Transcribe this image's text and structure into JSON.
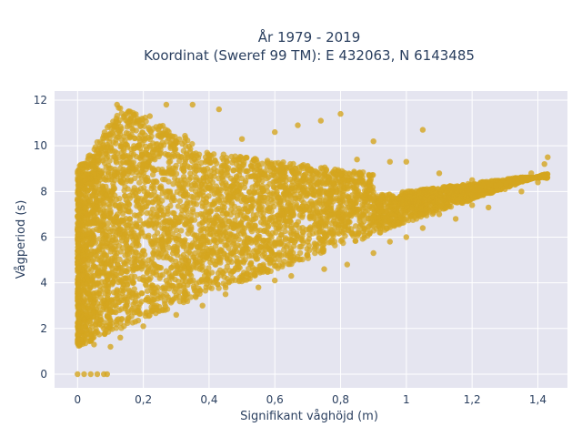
{
  "chart_data": {
    "type": "scatter",
    "title_line1": "År 1979 - 2019",
    "title_line2": "Koordinat (Sweref 99 TM): E 432063, N 6143485",
    "xlabel": "Signifikant våghöjd (m)",
    "ylabel": "Vågperiod (s)",
    "xlim": [
      -0.07,
      1.49
    ],
    "ylim": [
      -0.6,
      12.4
    ],
    "x_ticks": [
      0,
      0.2,
      0.4,
      0.6,
      0.8,
      1.0,
      1.2,
      1.4
    ],
    "x_tick_labels": [
      "0",
      "0,2",
      "0,4",
      "0,6",
      "0,8",
      "1",
      "1,2",
      "1,4"
    ],
    "y_ticks": [
      0,
      2,
      4,
      6,
      8,
      10,
      12
    ],
    "y_tick_labels": [
      "0",
      "2",
      "4",
      "6",
      "8",
      "10",
      "12"
    ],
    "grid": true,
    "colors": {
      "marker": "#d4a51f",
      "plot_bg": "#e5e5f0",
      "grid": "#ffffff"
    },
    "series": [
      {
        "values": [
          [
            0.0,
            0.0
          ],
          [
            0.02,
            0.0
          ],
          [
            0.04,
            0.0
          ],
          [
            0.06,
            0.0
          ],
          [
            0.08,
            0.0
          ],
          [
            0.09,
            0.0
          ],
          [
            0.0,
            1.5
          ],
          [
            0.01,
            1.9
          ],
          [
            0.02,
            3.2
          ],
          [
            0.02,
            5.0
          ],
          [
            0.03,
            7.0
          ],
          [
            0.03,
            8.6
          ],
          [
            0.05,
            1.3
          ],
          [
            0.05,
            6.0
          ],
          [
            0.06,
            9.8
          ],
          [
            0.06,
            4.0
          ],
          [
            0.08,
            2.0
          ],
          [
            0.08,
            7.5
          ],
          [
            0.1,
            1.2
          ],
          [
            0.1,
            10.5
          ],
          [
            0.1,
            5.6
          ],
          [
            0.12,
            11.8
          ],
          [
            0.13,
            1.6
          ],
          [
            0.14,
            8.8
          ],
          [
            0.15,
            3.0
          ],
          [
            0.16,
            11.5
          ],
          [
            0.18,
            6.5
          ],
          [
            0.2,
            2.1
          ],
          [
            0.2,
            9.5
          ],
          [
            0.22,
            11.3
          ],
          [
            0.25,
            4.2
          ],
          [
            0.25,
            7.2
          ],
          [
            0.27,
            11.8
          ],
          [
            0.3,
            2.6
          ],
          [
            0.3,
            10.2
          ],
          [
            0.33,
            5.0
          ],
          [
            0.35,
            11.8
          ],
          [
            0.38,
            3.0
          ],
          [
            0.4,
            9.4
          ],
          [
            0.42,
            6.8
          ],
          [
            0.43,
            11.6
          ],
          [
            0.45,
            3.5
          ],
          [
            0.5,
            10.3
          ],
          [
            0.5,
            5.3
          ],
          [
            0.55,
            3.8
          ],
          [
            0.55,
            8.7
          ],
          [
            0.6,
            4.1
          ],
          [
            0.6,
            10.6
          ],
          [
            0.62,
            7.0
          ],
          [
            0.65,
            4.3
          ],
          [
            0.67,
            10.9
          ],
          [
            0.7,
            5.8
          ],
          [
            0.74,
            11.1
          ],
          [
            0.75,
            4.6
          ],
          [
            0.8,
            6.8
          ],
          [
            0.8,
            11.4
          ],
          [
            0.82,
            4.8
          ],
          [
            0.85,
            9.4
          ],
          [
            0.9,
            5.3
          ],
          [
            0.9,
            10.2
          ],
          [
            0.92,
            7.4
          ],
          [
            0.95,
            5.8
          ],
          [
            0.95,
            9.3
          ],
          [
            1.0,
            6.0
          ],
          [
            1.0,
            9.3
          ],
          [
            1.05,
            6.4
          ],
          [
            1.05,
            10.7
          ],
          [
            1.1,
            7.0
          ],
          [
            1.1,
            8.8
          ],
          [
            1.15,
            6.8
          ],
          [
            1.2,
            7.4
          ],
          [
            1.2,
            8.5
          ],
          [
            1.25,
            7.3
          ],
          [
            1.3,
            8.1
          ],
          [
            1.35,
            8.0
          ],
          [
            1.38,
            8.8
          ],
          [
            1.4,
            8.4
          ],
          [
            1.42,
            9.2
          ],
          [
            1.43,
            9.5
          ]
        ]
      }
    ]
  }
}
